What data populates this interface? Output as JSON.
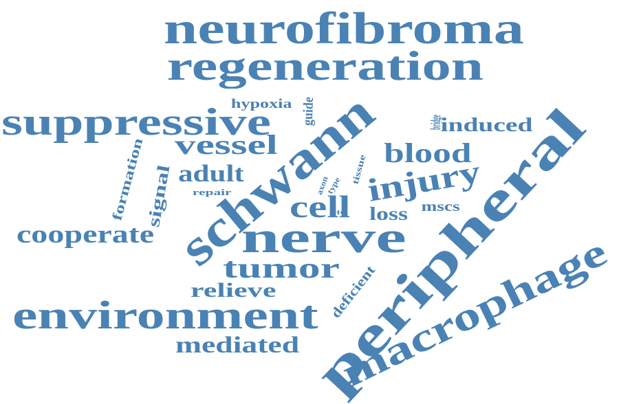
{
  "style": {
    "word_color": "#4a82b4",
    "background": "#ffffff",
    "font_weight": "bold"
  },
  "words": [
    {
      "id": "neurofibroma",
      "text": "neurofibroma"
    },
    {
      "id": "regeneration",
      "text": "regeneration"
    },
    {
      "id": "suppressive",
      "text": "suppressive"
    },
    {
      "id": "hypoxia",
      "text": "hypoxia"
    },
    {
      "id": "guide",
      "text": "guide"
    },
    {
      "id": "bridge",
      "text": "bridge"
    },
    {
      "id": "induced",
      "text": "induced"
    },
    {
      "id": "vessel",
      "text": "vessel"
    },
    {
      "id": "schwann",
      "text": "schwann"
    },
    {
      "id": "peripheral",
      "text": "peripheral"
    },
    {
      "id": "blood",
      "text": "blood"
    },
    {
      "id": "formation",
      "text": "formation"
    },
    {
      "id": "adult",
      "text": "adult"
    },
    {
      "id": "signal",
      "text": "signal"
    },
    {
      "id": "injury",
      "text": "injury"
    },
    {
      "id": "repair",
      "text": "repair"
    },
    {
      "id": "axon",
      "text": "axon"
    },
    {
      "id": "type",
      "text": "type"
    },
    {
      "id": "tissue",
      "text": "tissue"
    },
    {
      "id": "cell",
      "text": "cell"
    },
    {
      "id": "site",
      "text": "site"
    },
    {
      "id": "loss",
      "text": "loss"
    },
    {
      "id": "mscs",
      "text": "mscs"
    },
    {
      "id": "cooperate",
      "text": "cooperate"
    },
    {
      "id": "nerve",
      "text": "nerve"
    },
    {
      "id": "macrophage",
      "text": "macrophage"
    },
    {
      "id": "tumor",
      "text": "tumor"
    },
    {
      "id": "deficient",
      "text": "deficient"
    },
    {
      "id": "relieve",
      "text": "relieve"
    },
    {
      "id": "environment",
      "text": "environment"
    },
    {
      "id": "mediated",
      "text": "mediated"
    }
  ]
}
